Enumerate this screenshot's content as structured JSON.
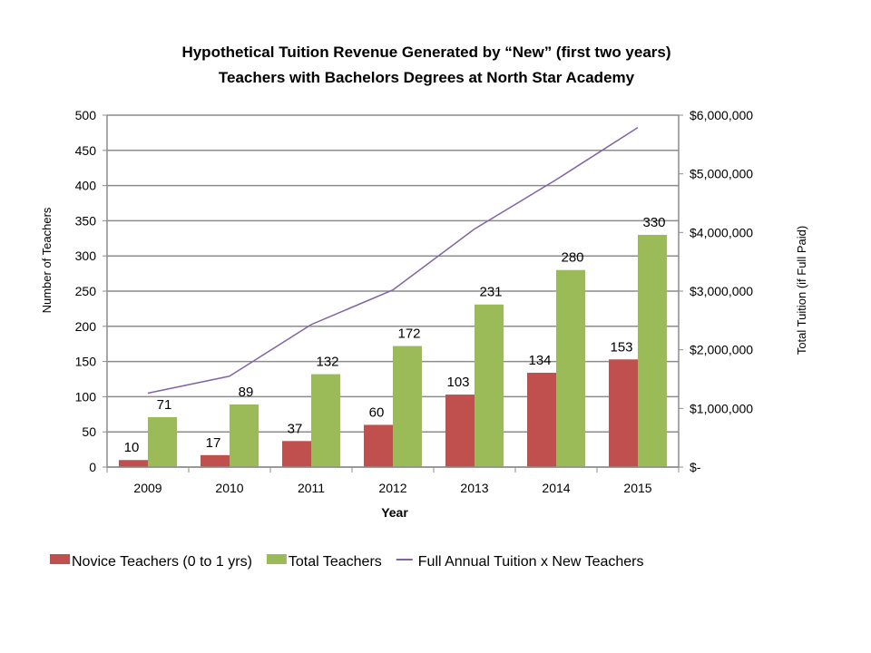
{
  "chart_data": {
    "type": "bar",
    "title_lines": [
      "Hypothetical Tuition Revenue Generated by “New” (first two years)",
      "Teachers with Bachelors Degrees at North Star Academy"
    ],
    "xlabel": "Year",
    "ylabel": "Number of Teachers",
    "y2label": "Total Tuition (if Full Paid)",
    "categories": [
      "2009",
      "2010",
      "2011",
      "2012",
      "2013",
      "2014",
      "2015"
    ],
    "ylim": [
      0,
      500
    ],
    "yticks": [
      0,
      50,
      100,
      150,
      200,
      250,
      300,
      350,
      400,
      450,
      500
    ],
    "y2lim": [
      0,
      6000000
    ],
    "y2ticks": [
      "$-",
      "$1,000,000",
      "$2,000,000",
      "$3,000,000",
      "$4,000,000",
      "$5,000,000",
      "$6,000,000"
    ],
    "grid": true,
    "legend_position": "bottom",
    "series": [
      {
        "name": "Novice Teachers (0 to 1 yrs)",
        "type": "bar",
        "axis": "left",
        "color": "#c0504d",
        "values": [
          10,
          17,
          37,
          60,
          103,
          134,
          153
        ]
      },
      {
        "name": "Total Teachers",
        "type": "bar",
        "axis": "left",
        "color": "#9bbb59",
        "values": [
          71,
          89,
          132,
          172,
          231,
          280,
          330
        ]
      },
      {
        "name": "Full Annual Tuition x New Teachers",
        "type": "line",
        "axis": "right",
        "color": "#8064a2",
        "values": [
          1260000,
          1550000,
          2430000,
          3020000,
          4060000,
          4900000,
          5790000
        ]
      }
    ]
  }
}
